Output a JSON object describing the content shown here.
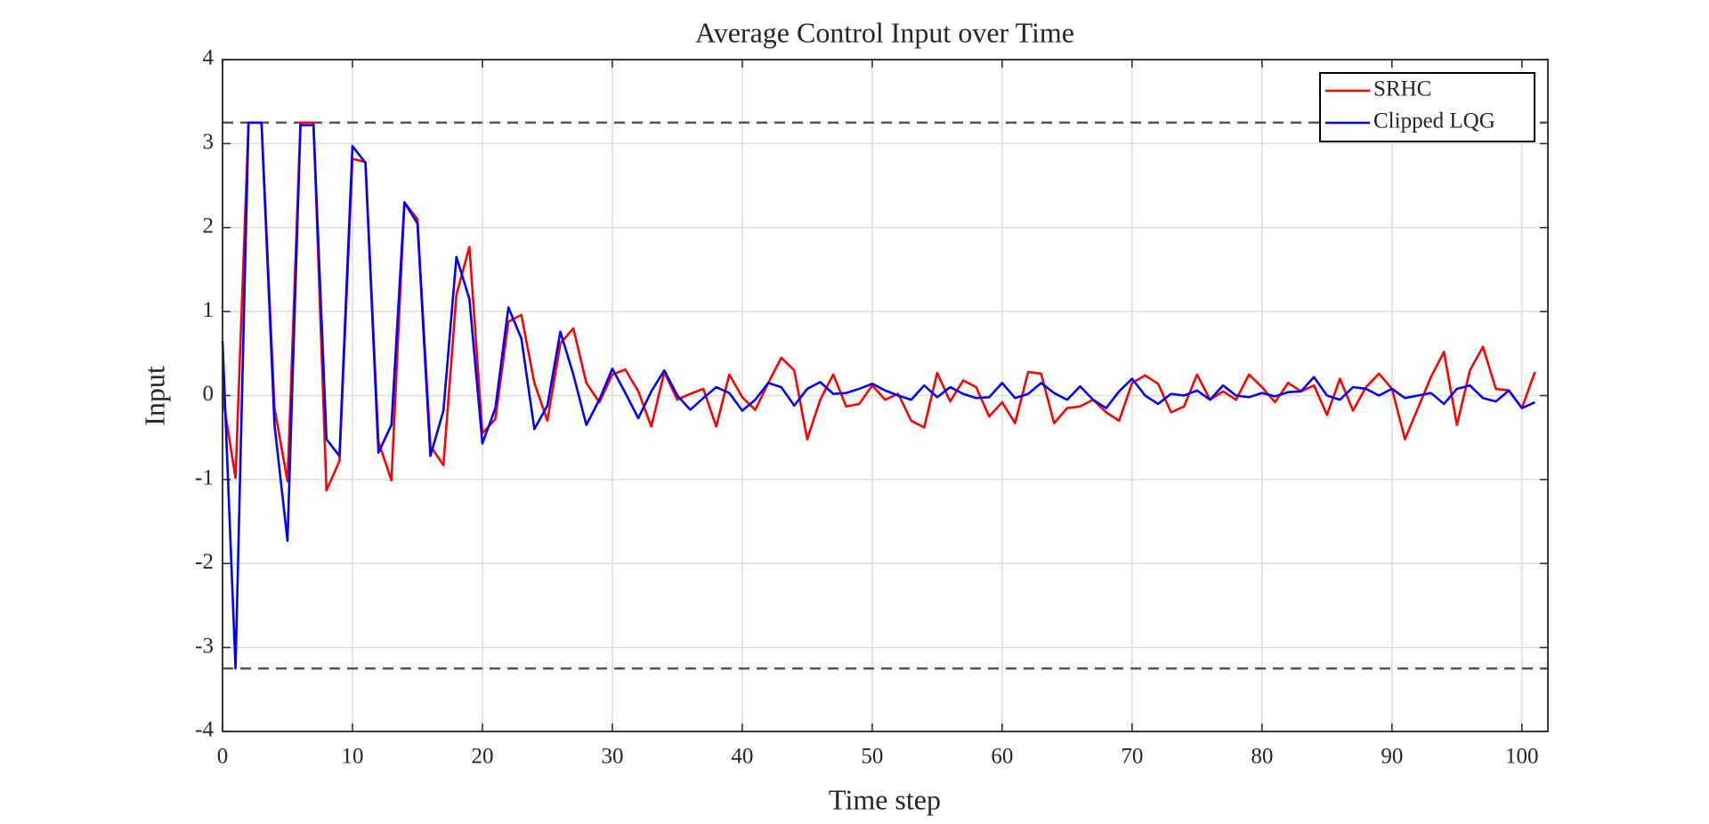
{
  "chart_data": {
    "type": "line",
    "title": "Average Control Input over Time",
    "x_label": "Time step",
    "y_label": "Input",
    "x": [
      0,
      1,
      2,
      3,
      4,
      5,
      6,
      7,
      8,
      9,
      10,
      11,
      12,
      13,
      14,
      15,
      16,
      17,
      18,
      19,
      20,
      21,
      22,
      23,
      24,
      25,
      26,
      27,
      28,
      29,
      30,
      31,
      32,
      33,
      34,
      35,
      36,
      37,
      38,
      39,
      40,
      41,
      42,
      43,
      44,
      45,
      46,
      47,
      48,
      49,
      50,
      51,
      52,
      53,
      54,
      55,
      56,
      57,
      58,
      59,
      60,
      61,
      62,
      63,
      64,
      65,
      66,
      67,
      68,
      69,
      70,
      71,
      72,
      73,
      74,
      75,
      76,
      77,
      78,
      79,
      80,
      81,
      82,
      83,
      84,
      85,
      86,
      87,
      88,
      89,
      90,
      91,
      92,
      93,
      94,
      95,
      96,
      97,
      98,
      99,
      100,
      101
    ],
    "series": [
      {
        "name": "SRHC",
        "color": "#ff0000",
        "values": [
          0,
          -0.98,
          3.25,
          3.25,
          -0.15,
          -1.02,
          3.25,
          3.25,
          -1.13,
          -0.78,
          2.82,
          2.78,
          -0.55,
          -1.01,
          2.3,
          2.1,
          -0.6,
          -0.83,
          1.2,
          1.77,
          -0.45,
          -0.28,
          0.88,
          0.96,
          0.15,
          -0.3,
          0.62,
          0.8,
          0.15,
          -0.08,
          0.25,
          0.31,
          0.05,
          -0.37,
          0.28,
          -0.05,
          0.02,
          0.08,
          -0.37,
          0.25,
          -0.02,
          -0.17,
          0.15,
          0.45,
          0.3,
          -0.52,
          -0.05,
          0.25,
          -0.13,
          -0.1,
          0.12,
          -0.05,
          0.02,
          -0.3,
          -0.38,
          0.27,
          -0.07,
          0.18,
          0.1,
          -0.25,
          -0.08,
          -0.33,
          0.28,
          0.26,
          -0.33,
          -0.15,
          -0.13,
          -0.05,
          -0.2,
          -0.3,
          0.15,
          0.24,
          0.14,
          -0.2,
          -0.13,
          0.25,
          -0.05,
          0.05,
          -0.05,
          0.25,
          0.1,
          -0.08,
          0.15,
          0.05,
          0.12,
          -0.23,
          0.2,
          -0.18,
          0.1,
          0.26,
          0.08,
          -0.52,
          -0.15,
          0.22,
          0.52,
          -0.35,
          0.3,
          0.58,
          0.08,
          0.06,
          -0.15,
          0.28
        ]
      },
      {
        "name": "Clipped LQG",
        "color": "#0000ff",
        "values": [
          0.65,
          -3.25,
          3.25,
          3.25,
          -0.35,
          -1.73,
          3.22,
          3.22,
          -0.52,
          -0.72,
          2.97,
          2.77,
          -0.68,
          -0.35,
          2.3,
          2.05,
          -0.72,
          -0.18,
          1.65,
          1.15,
          -0.57,
          -0.15,
          1.05,
          0.68,
          -0.4,
          -0.12,
          0.76,
          0.25,
          -0.35,
          -0.05,
          0.32,
          0.03,
          -0.27,
          0.05,
          0.3,
          0,
          -0.17,
          -0.03,
          0.1,
          0.03,
          -0.18,
          -0.05,
          0.15,
          0.1,
          -0.12,
          0.08,
          0.16,
          0.02,
          0.03,
          0.08,
          0.14,
          0.06,
          0,
          -0.05,
          0.12,
          -0.02,
          0.1,
          0.02,
          -0.03,
          -0.02,
          0.15,
          -0.03,
          0.02,
          0.15,
          0.03,
          -0.05,
          0.11,
          -0.05,
          -0.15,
          0.05,
          0.2,
          0,
          -0.1,
          0.02,
          0,
          0.06,
          -0.05,
          0.12,
          0,
          -0.02,
          0.03,
          -0.01,
          0.04,
          0.05,
          0.22,
          0,
          -0.05,
          0.1,
          0.08,
          0,
          0.08,
          -0.03,
          0,
          0.03,
          -0.1,
          0.08,
          0.12,
          -0.03,
          -0.07,
          0.06,
          -0.15,
          -0.08
        ]
      }
    ],
    "reference_lines": [
      3.25,
      -3.25
    ],
    "xlim": [
      0,
      102
    ],
    "xticks": [
      0,
      10,
      20,
      30,
      40,
      50,
      60,
      70,
      80,
      90,
      100
    ],
    "ylim": [
      -4,
      4
    ],
    "yticks": [
      -4,
      -3,
      -2,
      -1,
      0,
      1,
      2,
      3,
      4
    ],
    "grid": true,
    "legend": "top-right"
  }
}
